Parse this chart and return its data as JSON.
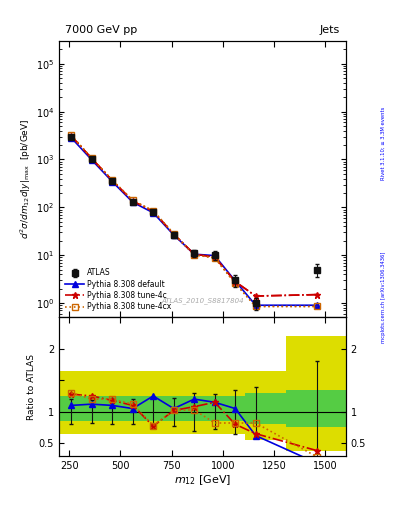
{
  "title_left": "7000 GeV pp",
  "title_right": "Jets",
  "ylabel_main": "d$^2\\sigma$/dm$_{12}$d|y|$_{max}$  [pb/GeV]",
  "ylabel_ratio": "Ratio to ATLAS",
  "xlabel": "m$_{12}$ [GeV]",
  "watermark": "ATLAS_2010_S8817804",
  "right_label": "mcplots.cern.ch [arXiv:1306.3436]",
  "right_label2": "Rivet 3.1.10; ≥ 3.3M events",
  "x_data": [
    260,
    360,
    460,
    560,
    660,
    760,
    860,
    960,
    1060,
    1160,
    1460
  ],
  "atlas_y": [
    2900,
    1000,
    350,
    130,
    80,
    27,
    11,
    10,
    3.0,
    1.0,
    5.0
  ],
  "atlas_yerr_low": [
    200,
    80,
    30,
    15,
    10,
    4,
    2,
    2,
    0.8,
    0.3,
    1.5
  ],
  "atlas_yerr_high": [
    200,
    80,
    30,
    15,
    10,
    4,
    2,
    2,
    0.8,
    0.3,
    1.5
  ],
  "default_y": [
    2850,
    980,
    345,
    128,
    77,
    26.5,
    10.5,
    9.8,
    2.9,
    0.9,
    0.9
  ],
  "tune4c_y": [
    3100,
    1050,
    365,
    135,
    82,
    27.5,
    10.5,
    9.2,
    2.8,
    1.4,
    1.5
  ],
  "tune4cx_y": [
    3200,
    1060,
    370,
    140,
    84,
    28.0,
    10.2,
    8.8,
    2.6,
    0.85,
    0.85
  ],
  "default_ratio": [
    1.1,
    1.12,
    1.1,
    1.05,
    1.25,
    1.05,
    1.2,
    1.15,
    1.05,
    0.62,
    0.18
  ],
  "tune4c_ratio": [
    1.28,
    1.25,
    1.18,
    1.1,
    0.77,
    1.02,
    1.08,
    1.15,
    0.8,
    0.65,
    0.38
  ],
  "tune4cx_ratio": [
    1.3,
    1.2,
    1.2,
    1.12,
    0.78,
    1.02,
    1.03,
    0.82,
    0.82,
    0.82,
    0.28
  ],
  "ratio_atlas_err_low": [
    0.2,
    0.18,
    0.2,
    0.2,
    0.22,
    0.22,
    0.3,
    0.28,
    0.35,
    0.4,
    0.8
  ],
  "ratio_atlas_err_high": [
    0.2,
    0.18,
    0.2,
    0.2,
    0.22,
    0.22,
    0.3,
    0.28,
    0.35,
    0.4,
    0.8
  ],
  "xbins": [
    200,
    310,
    410,
    510,
    610,
    710,
    810,
    910,
    1010,
    1110,
    1310,
    1600
  ],
  "green_lo": [
    0.85,
    0.85,
    0.85,
    0.85,
    0.85,
    0.85,
    0.85,
    0.85,
    0.85,
    0.8,
    0.75
  ],
  "green_hi": [
    1.25,
    1.25,
    1.25,
    1.25,
    1.25,
    1.25,
    1.25,
    1.25,
    1.25,
    1.3,
    1.35
  ],
  "yellow_lo": [
    0.65,
    0.65,
    0.65,
    0.65,
    0.65,
    0.65,
    0.65,
    0.65,
    0.65,
    0.55,
    0.38
  ],
  "yellow_hi": [
    1.65,
    1.65,
    1.65,
    1.65,
    1.65,
    1.65,
    1.65,
    1.65,
    1.65,
    1.65,
    2.2
  ],
  "color_atlas": "#111111",
  "color_default": "#0000dd",
  "color_tune4c": "#cc0000",
  "color_tune4cx": "#cc6600",
  "color_green": "#55cc44",
  "color_yellow": "#dddd00",
  "xlim": [
    200,
    1600
  ],
  "ylim_main": [
    0.5,
    300000.0
  ],
  "ylim_ratio": [
    0.3,
    2.5
  ],
  "yticks_ratio": [
    0.5,
    1.0,
    1.5,
    2.0
  ],
  "ytick_labels_ratio": [
    "0.5",
    "1",
    "",
    "2"
  ]
}
